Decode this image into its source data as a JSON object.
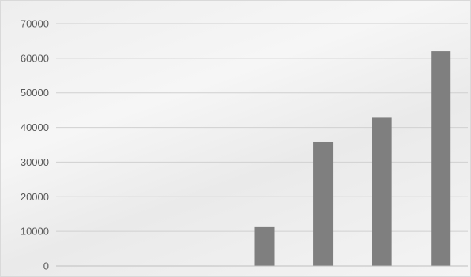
{
  "chart_data": {
    "type": "bar",
    "title": "",
    "xlabel": "",
    "ylabel": "",
    "categories": [
      "",
      "",
      "",
      "",
      "",
      "",
      ""
    ],
    "values": [
      0,
      0,
      0,
      11200,
      35800,
      43000,
      62000
    ],
    "ylim": [
      0,
      70000
    ],
    "yticks": [
      "0",
      "10000",
      "20000",
      "30000",
      "40000",
      "50000",
      "60000",
      "70000"
    ],
    "grid": true,
    "legend": "none",
    "bar_color": "#7f7f7f",
    "background_image": "rice-plants-photo"
  }
}
